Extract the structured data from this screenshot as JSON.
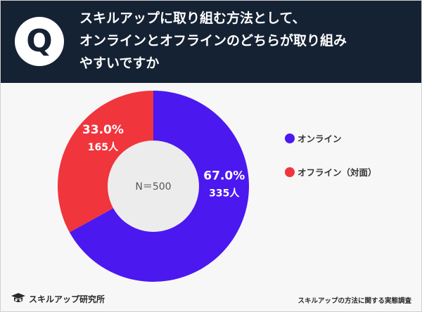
{
  "header": {
    "q_label": "Q",
    "title_lines": [
      "スキルアップに取り組む方法として、",
      "オンラインとオフラインのどちらが取り組み",
      "やすいですか"
    ]
  },
  "chart_data": {
    "type": "pie",
    "variant": "donut",
    "title": "スキルアップに取り組む方法として、オンラインとオフラインのどちらが取り組みやすいですか",
    "center_label": "N＝500",
    "total": 500,
    "categories": [
      "オンライン",
      "オフライン（対面）"
    ],
    "values": [
      67.0,
      33.0
    ],
    "counts": [
      335,
      165
    ],
    "percent_labels": [
      "67.0%",
      "33.0%"
    ],
    "count_labels": [
      "335人",
      "165人"
    ],
    "colors": [
      "#4b18f0",
      "#f0353d"
    ],
    "legend": "right"
  },
  "legend": {
    "items": [
      {
        "label": "オンライン",
        "color": "#4b18f0"
      },
      {
        "label": "オフライン（対面）",
        "color": "#f0353d"
      }
    ]
  },
  "footer": {
    "brand": "スキルアップ研究所",
    "note": "スキルアップの方法に関する実態調査"
  },
  "colors": {
    "header_bg": "#152233",
    "page_bg": "#f7f7f7",
    "hole": "#ececec"
  }
}
